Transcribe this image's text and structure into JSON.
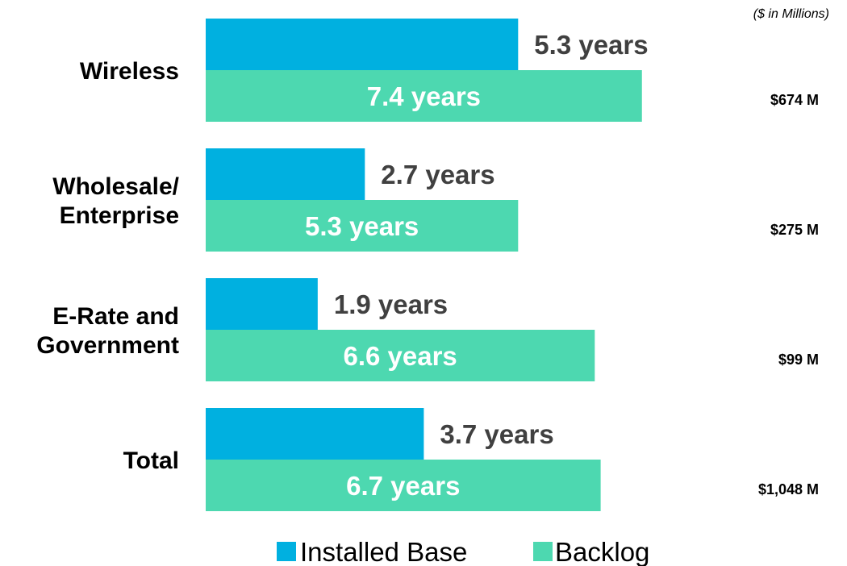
{
  "chart_data": {
    "type": "bar",
    "orientation": "horizontal",
    "unit_note": "($ in Millions)",
    "categories": [
      [
        "Wireless"
      ],
      [
        "Wholesale/",
        "Enterprise"
      ],
      [
        "E-Rate and",
        "Government"
      ],
      [
        "Total"
      ]
    ],
    "series": [
      {
        "name": "Installed Base",
        "color": "#00b0e0",
        "values": [
          5.3,
          2.7,
          1.9,
          3.7
        ],
        "labels": [
          "5.3 years",
          "2.7 years",
          "1.9 years",
          "3.7 years"
        ],
        "label_position": "outside",
        "label_color": "#404040"
      },
      {
        "name": "Backlog",
        "color": "#4dd8b0",
        "values": [
          7.4,
          5.3,
          6.6,
          6.7
        ],
        "labels": [
          "7.4 years",
          "5.3 years",
          "6.6 years",
          "6.7 years"
        ],
        "label_position": "inside",
        "label_color": "#ffffff"
      }
    ],
    "amounts": [
      "$674 M",
      "$275 M",
      "$99 M",
      "$1,048 M"
    ],
    "xlim": [
      0,
      10.4
    ],
    "grid": false,
    "legend": "bottom"
  }
}
